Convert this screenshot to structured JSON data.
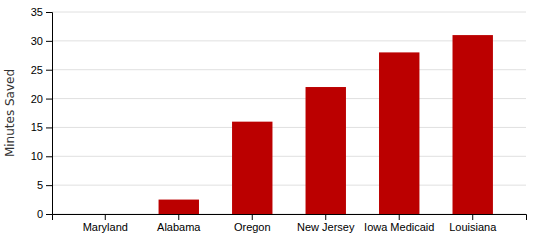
{
  "chart_data": {
    "type": "bar",
    "categories": [
      "Maryland",
      "Alabama",
      "Oregon",
      "New Jersey",
      "Iowa Medicaid",
      "Louisiana"
    ],
    "values": [
      0,
      2.5,
      16,
      22,
      28,
      31
    ],
    "color": "#bb0000",
    "ylabel": "Minutes Saved",
    "ylim": [
      0,
      35
    ],
    "yticks": [
      0,
      5,
      10,
      15,
      20,
      25,
      30,
      35
    ],
    "grid": true
  }
}
